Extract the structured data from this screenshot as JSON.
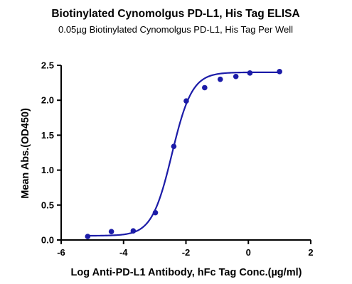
{
  "chart_data": {
    "type": "scatter",
    "title": "Biotinylated Cynomolgus PD-L1, His Tag ELISA",
    "subtitle": "0.05µg Biotinylated Cynomolgus PD-L1, His Tag Per Well",
    "xlabel": "Log Anti-PD-L1 Antibody, hFc Tag Conc.(µg/ml)",
    "ylabel": "Mean Abs.(OD450)",
    "xlim": [
      -6,
      2
    ],
    "ylim": [
      0,
      2.5
    ],
    "xticks": [
      "-6",
      "-4",
      "-2",
      "0",
      "2"
    ],
    "yticks": [
      "0.0",
      "0.5",
      "1.0",
      "1.5",
      "2.0",
      "2.5"
    ],
    "grid": false,
    "point_color": "#1c1ca8",
    "curve_color": "#1c1ca8",
    "series": [
      {
        "x": [
          -5.15,
          -4.39,
          -3.69,
          -2.98,
          -2.39,
          -1.99,
          -1.4,
          -0.9,
          -0.4,
          0.05,
          1.0
        ],
        "y": [
          0.05,
          0.12,
          0.13,
          0.39,
          1.34,
          1.99,
          2.18,
          2.3,
          2.34,
          2.39,
          2.41
        ]
      }
    ],
    "fit_curve": {
      "model": "4PL",
      "bottom": 0.06,
      "top": 2.4,
      "log_ec50": -2.45,
      "hill_slope": 1.35
    }
  }
}
